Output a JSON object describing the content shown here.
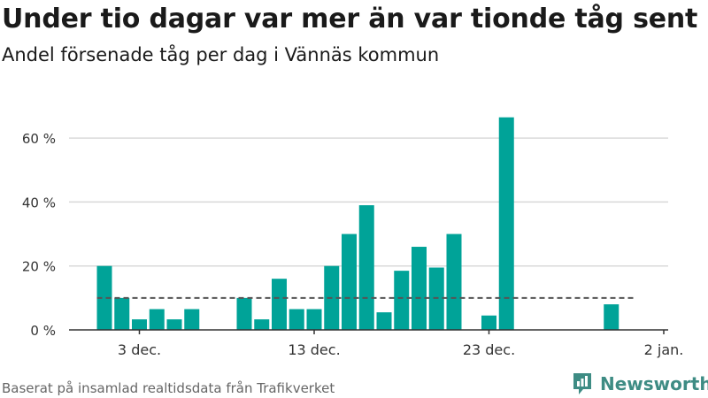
{
  "header": {
    "title": "Under tio dagar var mer än var tionde tåg sent",
    "subtitle": "Andel försenade tåg per dag i Vännäs kommun"
  },
  "footer": {
    "source": "Baserat på insamlad realtidsdata från Trafikverket",
    "brand": "Newsworthy"
  },
  "colors": {
    "bar": "#00a398",
    "reference_line": "#555555",
    "grid": "#d9d9d9",
    "brand": "#3e8c84"
  },
  "icons": {
    "brand_logo": "newsworthy-logo-icon"
  },
  "chart_data": {
    "type": "bar",
    "title": "Under tio dagar var mer än var tionde tåg sent",
    "subtitle": "Andel försenade tåg per dag i Vännäs kommun",
    "xlabel": "",
    "ylabel": "",
    "x_start": "2019-11-30",
    "x_end": "2020-01-02",
    "ylim": [
      0,
      70
    ],
    "yticks": [
      0,
      20,
      40,
      60
    ],
    "ytick_labels": [
      "0 %",
      "20 %",
      "40 %",
      "60 %"
    ],
    "xticks": [
      "2019-12-03",
      "2019-12-13",
      "2019-12-23",
      "2020-01-02"
    ],
    "xtick_labels": [
      "3 dec.",
      "13 dec.",
      "23 dec.",
      "2 jan."
    ],
    "reference_line": 10,
    "grid": true,
    "legend": "none",
    "values": [
      {
        "date": "2019-12-01",
        "value": 20
      },
      {
        "date": "2019-12-02",
        "value": 10
      },
      {
        "date": "2019-12-03",
        "value": 3.3
      },
      {
        "date": "2019-12-04",
        "value": 6.5
      },
      {
        "date": "2019-12-05",
        "value": 3.3
      },
      {
        "date": "2019-12-06",
        "value": 6.5
      },
      {
        "date": "2019-12-09",
        "value": 10
      },
      {
        "date": "2019-12-10",
        "value": 3.3
      },
      {
        "date": "2019-12-11",
        "value": 16
      },
      {
        "date": "2019-12-12",
        "value": 6.5
      },
      {
        "date": "2019-12-13",
        "value": 6.5
      },
      {
        "date": "2019-12-14",
        "value": 20
      },
      {
        "date": "2019-12-15",
        "value": 30
      },
      {
        "date": "2019-12-16",
        "value": 39
      },
      {
        "date": "2019-12-17",
        "value": 5.5
      },
      {
        "date": "2019-12-18",
        "value": 18.5
      },
      {
        "date": "2019-12-19",
        "value": 26
      },
      {
        "date": "2019-12-20",
        "value": 19.5
      },
      {
        "date": "2019-12-21",
        "value": 30
      },
      {
        "date": "2019-12-23",
        "value": 4.5
      },
      {
        "date": "2019-12-24",
        "value": 66.5
      },
      {
        "date": "2019-12-30",
        "value": 8
      }
    ]
  }
}
